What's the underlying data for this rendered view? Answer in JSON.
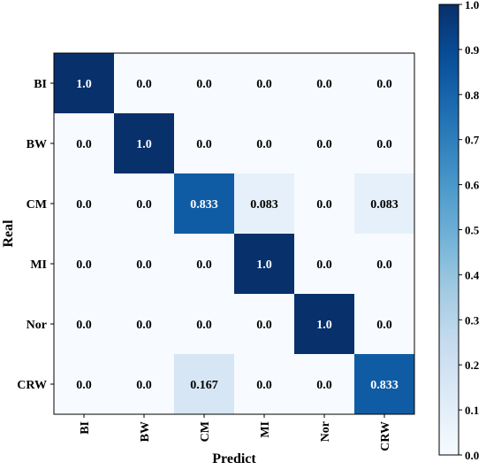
{
  "chart_data": {
    "type": "heatmap",
    "title": "",
    "xlabel": "Predict",
    "ylabel": "Real",
    "x_categories": [
      "BI",
      "BW",
      "CM",
      "MI",
      "Nor",
      "CRW"
    ],
    "y_categories": [
      "BI",
      "BW",
      "CM",
      "MI",
      "Nor",
      "CRW"
    ],
    "values": [
      [
        1.0,
        0.0,
        0.0,
        0.0,
        0.0,
        0.0
      ],
      [
        0.0,
        1.0,
        0.0,
        0.0,
        0.0,
        0.0
      ],
      [
        0.0,
        0.0,
        0.833,
        0.083,
        0.0,
        0.083
      ],
      [
        0.0,
        0.0,
        0.0,
        1.0,
        0.0,
        0.0
      ],
      [
        0.0,
        0.0,
        0.0,
        0.0,
        1.0,
        0.0
      ],
      [
        0.0,
        0.0,
        0.167,
        0.0,
        0.0,
        0.833
      ]
    ],
    "cell_labels": [
      [
        "1.0",
        "0.0",
        "0.0",
        "0.0",
        "0.0",
        "0.0"
      ],
      [
        "0.0",
        "1.0",
        "0.0",
        "0.0",
        "0.0",
        "0.0"
      ],
      [
        "0.0",
        "0.0",
        "0.833",
        "0.083",
        "0.0",
        "0.083"
      ],
      [
        "0.0",
        "0.0",
        "0.0",
        "1.0",
        "0.0",
        "0.0"
      ],
      [
        "0.0",
        "0.0",
        "0.0",
        "0.0",
        "1.0",
        "0.0"
      ],
      [
        "0.0",
        "0.0",
        "0.167",
        "0.0",
        "0.0",
        "0.833"
      ]
    ],
    "colormap": "Blues",
    "colorbar": {
      "range": [
        0.0,
        1.0
      ],
      "ticks": [
        "0.0",
        "0.1",
        "0.2",
        "0.3",
        "0.4",
        "0.5",
        "0.6",
        "0.7",
        "0.8",
        "0.9",
        "1.0"
      ]
    }
  }
}
